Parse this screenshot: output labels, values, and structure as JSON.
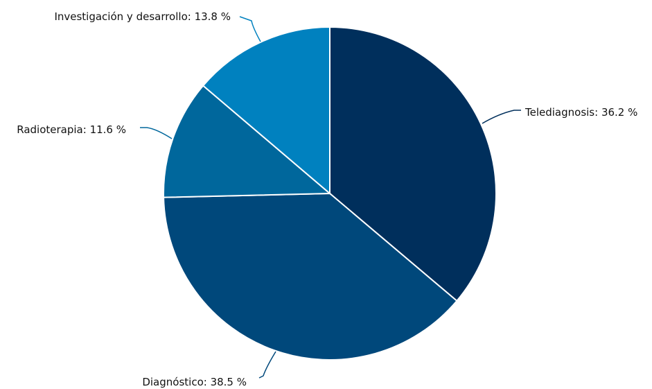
{
  "chart_data": {
    "type": "pie",
    "title": "",
    "slices": [
      {
        "label": "Telediagnosis",
        "value": 36.2,
        "display": "Telediagnosis: 36.2 %",
        "color": "#002f5c"
      },
      {
        "label": "Diagnóstico",
        "value": 38.5,
        "display": "Diagnóstico: 38.5 %",
        "color": "#00487b"
      },
      {
        "label": "Radioterapia",
        "value": 11.6,
        "display": "Radioterapia: 11.6 %",
        "color": "#00679c"
      },
      {
        "label": "Investigación y desarrollo",
        "value": 13.8,
        "display": "Investigación y desarrollo: 13.8 %",
        "color": "#0081bf"
      }
    ],
    "start_angle_deg": 0,
    "direction": "clockwise",
    "legend": "none"
  }
}
